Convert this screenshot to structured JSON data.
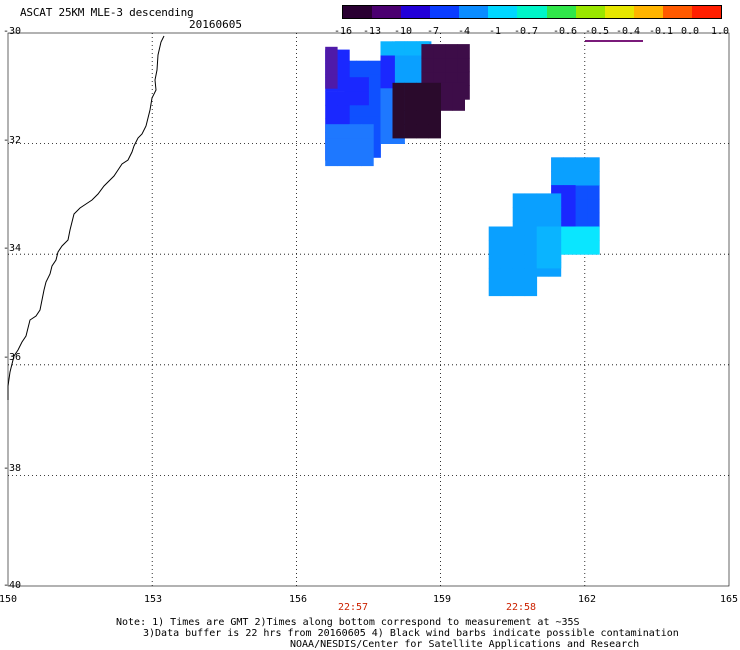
{
  "header": {
    "title": "ASCAT 25KM MLE-3 descending",
    "date": "20160605"
  },
  "colorbar": {
    "labels": [
      "-16",
      "-13",
      "-10",
      "-7",
      "-4",
      "-1",
      "-0.7",
      "-0.6",
      "-0.5",
      "-0.4",
      "-0.1",
      "0.0",
      "1.0"
    ],
    "colors": [
      "#2a0032",
      "#4b0070",
      "#2200d8",
      "#0a3cff",
      "#0a8cff",
      "#00d7ff",
      "#00f5c8",
      "#30e64a",
      "#9ae600",
      "#e6e600",
      "#ffb400",
      "#ff5a00",
      "#ff1e00"
    ]
  },
  "map": {
    "latitude_labels": [
      "-30",
      "-32",
      "-34",
      "-36",
      "-38",
      "-40"
    ],
    "longitude_labels": [
      "150",
      "153",
      "156",
      "159",
      "162",
      "165"
    ],
    "lat_range": [
      -40,
      -30
    ],
    "lon_range": [
      150,
      165
    ],
    "grid": true,
    "time_labels": [
      {
        "text": "22:57",
        "lon": 157.0
      },
      {
        "text": "22:58",
        "lon": 160.5
      }
    ]
  },
  "notes": {
    "line1": "Note: 1) Times are GMT 2)Times along bottom correspond to measurement at ~35S",
    "line2": "3)Data buffer is 22 hrs from 20160605 4) Black wind barbs indicate possible contamination",
    "line3": "NOAA/NESDIS/Center for Satellite Applications and Research"
  },
  "legend_colors": {
    "very_dark": "#2a0a2c",
    "dark_purple": "#3d0d48",
    "purple": "#4f1aa8",
    "deep_blue": "#1a28ff",
    "blue": "#0f50ff",
    "mid_blue": "#1e78ff",
    "light_blue": "#0aa0ff",
    "sky": "#0ab4ff",
    "cyan": "#0ae6ff"
  }
}
